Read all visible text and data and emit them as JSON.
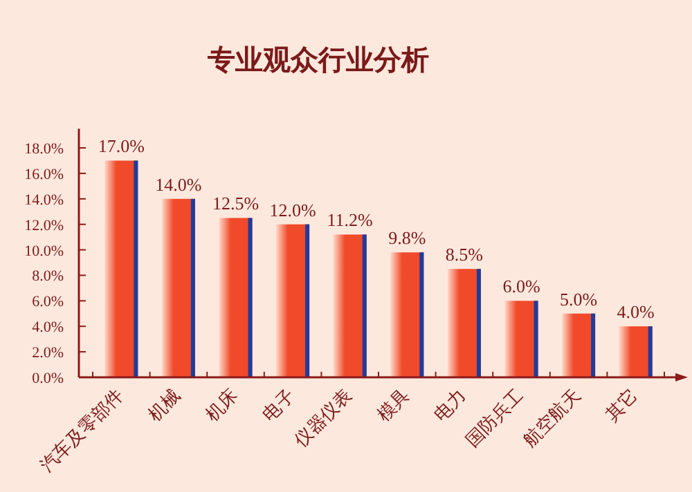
{
  "chart_data": {
    "type": "bar",
    "title": "专业观众行业分析",
    "categories": [
      "汽车及零部件",
      "机械",
      "机床",
      "电子",
      "仪器仪表",
      "模具",
      "电力",
      "国防兵工",
      "航空航天",
      "其它"
    ],
    "values": [
      17.0,
      14.0,
      12.5,
      12.0,
      11.2,
      9.8,
      8.5,
      6.0,
      5.0,
      4.0
    ],
    "value_labels": [
      "17.0%",
      "14.0%",
      "12.5%",
      "12.0%",
      "11.2%",
      "9.8%",
      "8.5%",
      "6.0%",
      "5.0%",
      "4.0%"
    ],
    "color": "#f04a2a",
    "ylim": [
      0,
      19.5
    ],
    "yticks": [
      {
        "value": 0,
        "label": "0.0%"
      },
      {
        "value": 2,
        "label": "2.0%"
      },
      {
        "value": 4,
        "label": "4.0%"
      },
      {
        "value": 6,
        "label": "6.0%"
      },
      {
        "value": 8,
        "label": "8.0%"
      },
      {
        "value": 10,
        "label": "10.0%"
      },
      {
        "value": 12,
        "label": "12.0%"
      },
      {
        "value": 14,
        "label": "14.0%"
      },
      {
        "value": 16,
        "label": "16.0%"
      },
      {
        "value": 18,
        "label": "18.0%"
      }
    ],
    "grid": false
  }
}
